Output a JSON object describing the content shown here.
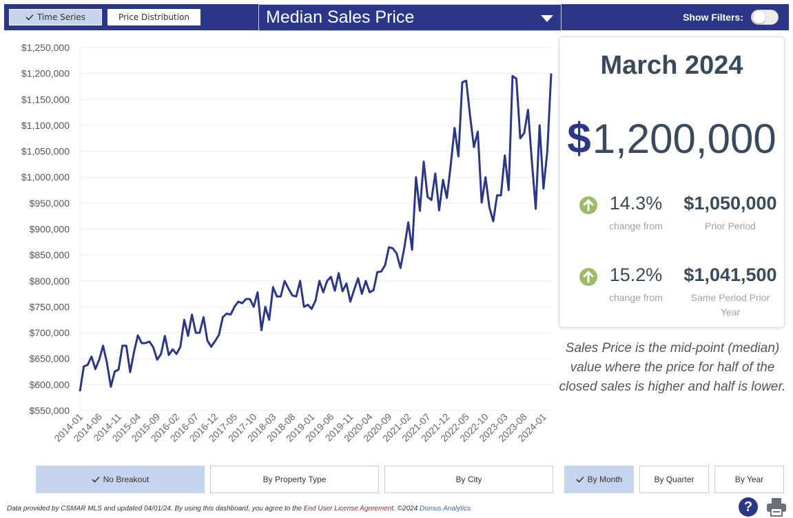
{
  "header": {
    "view_buttons": [
      {
        "label": "Time Series",
        "active": true
      },
      {
        "label": "Price Distribution",
        "active": false
      }
    ],
    "metric": "Median Sales Price",
    "filters_label": "Show Filters:",
    "filters_on": false
  },
  "summary": {
    "period": "March 2024",
    "currency_symbol": "$",
    "value": "1,200,000",
    "comparisons": [
      {
        "pct": "14.3%",
        "direction": "up",
        "label": "change from",
        "value": "$1,050,000",
        "value_label": "Prior Period"
      },
      {
        "pct": "15.2%",
        "direction": "up",
        "label": "change from",
        "value": "$1,041,500",
        "value_label": "Same Period Prior Year"
      }
    ]
  },
  "definition": "Sales Price is the mid-point (median) value where the price for half of the closed sales is higher and half is lower.",
  "breakout_buttons": [
    {
      "label": "No Breakout",
      "active": true
    },
    {
      "label": "By Property Type",
      "active": false
    },
    {
      "label": "By City",
      "active": false
    }
  ],
  "period_buttons": [
    {
      "label": "By Month",
      "active": true
    },
    {
      "label": "By Quarter",
      "active": false
    },
    {
      "label": "By Year",
      "active": false
    }
  ],
  "footer": {
    "text1": "Data provided by CSMAR MLS and updated 04/01/24.  By using this dashboard, you agree to the ",
    "eula": "End User License Agreement",
    "text2": ".  ©2024 ",
    "brand": "Domus Analytics"
  },
  "help_label": "?",
  "colors": {
    "header": "#2b3686",
    "line": "#2b3686",
    "active_button": "#c6d4ee",
    "up_icon": "#9dba6b"
  },
  "chart_data": {
    "type": "line",
    "x_start": "2014-01",
    "tick_labels": [
      "2014-01",
      "2014-06",
      "2014-11",
      "2015-04",
      "2015-09",
      "2016-02",
      "2016-07",
      "2016-12",
      "2017-05",
      "2017-10",
      "2018-03",
      "2018-08",
      "2019-01",
      "2019-06",
      "2019-11",
      "2020-04",
      "2020-09",
      "2021-02",
      "2021-07",
      "2021-12",
      "2022-05",
      "2022-10",
      "2023-03",
      "2023-08",
      "2024-01"
    ],
    "ylim": [
      550000,
      1250000
    ],
    "yticks": [
      550000,
      600000,
      650000,
      700000,
      750000,
      800000,
      850000,
      900000,
      950000,
      1000000,
      1050000,
      1100000,
      1150000,
      1200000,
      1250000
    ],
    "ytick_labels": [
      "$550,000",
      "$600,000",
      "$650,000",
      "$700,000",
      "$750,000",
      "$800,000",
      "$850,000",
      "$900,000",
      "$950,000",
      "$1,000,000",
      "$1,050,000",
      "$1,100,000",
      "$1,150,000",
      "$1,200,000",
      "$1,250,000"
    ],
    "grid": true,
    "series": [
      {
        "values": [
          587000,
          635000,
          638000,
          654000,
          630000,
          648000,
          675000,
          642000,
          596000,
          625000,
          629000,
          675000,
          675000,
          624000,
          663000,
          695000,
          680000,
          680000,
          683000,
          672000,
          648000,
          659000,
          694000,
          657000,
          668000,
          659000,
          673000,
          725000,
          694000,
          735000,
          700000,
          700000,
          730000,
          685000,
          673000,
          684000,
          696000,
          730000,
          737000,
          735000,
          750000,
          760000,
          757000,
          765000,
          765000,
          750000,
          778000,
          705000,
          750000,
          725000,
          788000,
          770000,
          770000,
          800000,
          785000,
          772000,
          770000,
          800000,
          750000,
          754000,
          746000,
          762000,
          800000,
          778000,
          800000,
          808000,
          781000,
          815000,
          780000,
          795000,
          760000,
          783000,
          805000,
          775000,
          800000,
          778000,
          782000,
          817000,
          818000,
          830000,
          865000,
          863000,
          853000,
          825000,
          865000,
          913000,
          860000,
          1000000,
          935000,
          1030000,
          962000,
          956000,
          1007000,
          936000,
          995000,
          960000,
          1023000,
          1095000,
          1040000,
          1183000,
          1186000,
          1118000,
          1058000,
          1088000,
          951000,
          1000000,
          942000,
          915000,
          965000,
          965000,
          1042000,
          975000,
          1195000,
          1190000,
          1075000,
          1085000,
          1130000,
          1030000,
          939000,
          1100000,
          978000,
          1050000,
          1200000
        ]
      }
    ]
  }
}
